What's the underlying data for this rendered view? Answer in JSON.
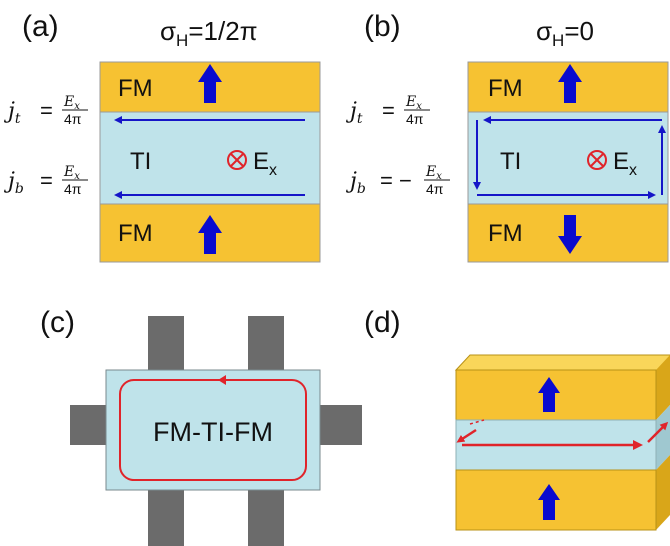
{
  "panel_a": {
    "tag": "(a)",
    "sigma": "σ",
    "sigma_sub": "H",
    "sigma_value": "=1/2π",
    "top_layer": "FM",
    "middle_layer": "TI",
    "bottom_layer": "FM",
    "field_symbol": "⊗",
    "field_name": "E",
    "field_sub": "x",
    "jt_var": "j",
    "jt_sub": "t",
    "jt_rhs": "=",
    "jt_num": "E",
    "jt_num_sub": "x",
    "jt_den": "4π",
    "jb_var": "j",
    "jb_sub": "b",
    "jb_rhs": "=",
    "jb_num": "E",
    "jb_num_sub": "x",
    "jb_den": "4π",
    "colors": {
      "fm": "#f6c232",
      "ti": "#bfe3ea",
      "arrow": "#0a0acf",
      "current": "#1515c8"
    }
  },
  "panel_b": {
    "tag": "(b)",
    "sigma": "σ",
    "sigma_sub": "H",
    "sigma_value": "=0",
    "top_layer": "FM",
    "middle_layer": "TI",
    "bottom_layer": "FM",
    "field_symbol": "⊗",
    "field_name": "E",
    "field_sub": "x",
    "jt_var": "j",
    "jt_sub": "t",
    "jt_rhs": "=",
    "jt_num": "E",
    "jt_num_sub": "x",
    "jt_den": "4π",
    "jb_var": "j",
    "jb_sub": "b",
    "jb_rhs": "= −",
    "jb_num": "E",
    "jb_num_sub": "x",
    "jb_den": "4π"
  },
  "panel_c": {
    "tag": "(c)",
    "device_label": "FM-TI-FM",
    "colors": {
      "contact": "#6b6b6b",
      "device": "#bfe3ea",
      "loop": "#e0242a"
    }
  },
  "panel_d": {
    "tag": "(d)",
    "colors": {
      "fm_front": "#f6c232",
      "fm_top": "#f9d65a",
      "fm_side": "#d9a619",
      "ti_front": "#bfe3ea",
      "ti_side": "#9fc8d0",
      "current": "#e0242a"
    }
  }
}
